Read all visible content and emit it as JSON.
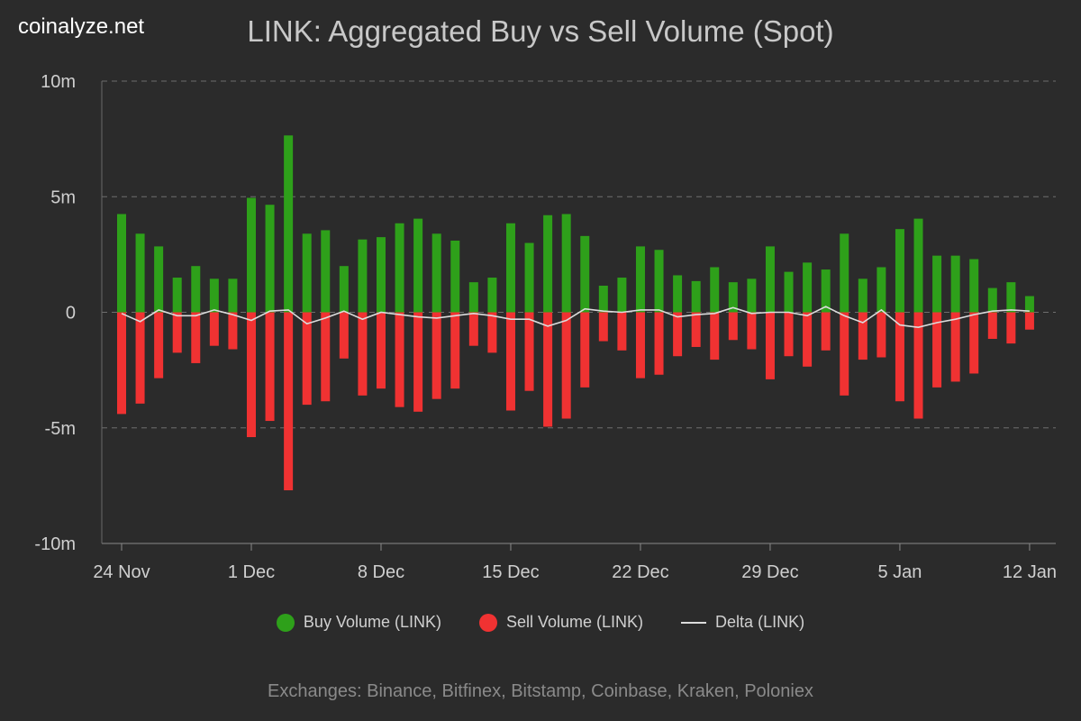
{
  "site": "coinalyze.net",
  "title": "LINK: Aggregated Buy vs Sell Volume (Spot)",
  "footer": "Exchanges: Binance, Bitfinex, Bitstamp, Coinbase, Kraken, Poloniex",
  "legend": {
    "buy": "Buy Volume (LINK)",
    "sell": "Sell Volume (LINK)",
    "delta": "Delta (LINK)"
  },
  "colors": {
    "buy": "#2ea01a",
    "sell": "#f03232",
    "delta": "#dcdcdc",
    "grid": "#6e6e6e"
  },
  "chart_data": {
    "type": "bar",
    "title": "LINK: Aggregated Buy vs Sell Volume (Spot)",
    "ylim": [
      -10,
      10
    ],
    "y_unit": "m",
    "y_ticks": [
      {
        "value": 10,
        "label": "10m"
      },
      {
        "value": 5,
        "label": "5m"
      },
      {
        "value": 0,
        "label": "0"
      },
      {
        "value": -5,
        "label": "-5m"
      },
      {
        "value": -10,
        "label": "-10m"
      }
    ],
    "x_ticks": [
      {
        "index": 0,
        "label": "24 Nov"
      },
      {
        "index": 7,
        "label": "1 Dec"
      },
      {
        "index": 14,
        "label": "8 Dec"
      },
      {
        "index": 21,
        "label": "15 Dec"
      },
      {
        "index": 28,
        "label": "22 Dec"
      },
      {
        "index": 35,
        "label": "29 Dec"
      },
      {
        "index": 42,
        "label": "5 Jan"
      },
      {
        "index": 49,
        "label": "12 Jan"
      }
    ],
    "dates": [
      "24 Nov",
      "25 Nov",
      "26 Nov",
      "27 Nov",
      "28 Nov",
      "29 Nov",
      "30 Nov",
      "1 Dec",
      "2 Dec",
      "3 Dec",
      "4 Dec",
      "5 Dec",
      "6 Dec",
      "7 Dec",
      "8 Dec",
      "9 Dec",
      "10 Dec",
      "11 Dec",
      "12 Dec",
      "13 Dec",
      "14 Dec",
      "15 Dec",
      "16 Dec",
      "17 Dec",
      "18 Dec",
      "19 Dec",
      "20 Dec",
      "21 Dec",
      "22 Dec",
      "23 Dec",
      "24 Dec",
      "25 Dec",
      "26 Dec",
      "27 Dec",
      "28 Dec",
      "29 Dec",
      "30 Dec",
      "31 Dec",
      "1 Jan",
      "2 Jan",
      "3 Jan",
      "4 Jan",
      "5 Jan",
      "6 Jan",
      "7 Jan",
      "8 Jan",
      "9 Jan",
      "10 Jan",
      "11 Jan",
      "12 Jan"
    ],
    "series": [
      {
        "name": "Buy Volume (LINK)",
        "type": "bar",
        "values": [
          4.25,
          3.4,
          2.85,
          1.5,
          2.0,
          1.45,
          1.45,
          4.95,
          4.65,
          7.65,
          3.4,
          3.55,
          2.0,
          3.15,
          3.25,
          3.85,
          4.05,
          3.4,
          3.1,
          1.3,
          1.5,
          3.85,
          3.0,
          4.2,
          4.25,
          3.3,
          1.15,
          1.5,
          2.85,
          2.7,
          1.6,
          1.35,
          1.95,
          1.3,
          1.45,
          2.85,
          1.75,
          2.15,
          1.85,
          3.4,
          1.45,
          1.95,
          3.6,
          4.05,
          2.45,
          2.45,
          2.3,
          1.05,
          1.3,
          0.7
        ]
      },
      {
        "name": "Sell Volume (LINK)",
        "type": "bar",
        "values": [
          -4.4,
          -3.95,
          -2.85,
          -1.75,
          -2.2,
          -1.45,
          -1.6,
          -5.4,
          -4.7,
          -7.7,
          -4.0,
          -3.85,
          -2.0,
          -3.6,
          -3.3,
          -4.1,
          -4.3,
          -3.75,
          -3.3,
          -1.45,
          -1.75,
          -4.25,
          -3.4,
          -4.95,
          -4.6,
          -3.25,
          -1.25,
          -1.65,
          -2.85,
          -2.7,
          -1.9,
          -1.5,
          -2.05,
          -1.2,
          -1.6,
          -2.9,
          -1.9,
          -2.35,
          -1.65,
          -3.6,
          -2.05,
          -1.95,
          -3.85,
          -4.6,
          -3.25,
          -3.0,
          -2.65,
          -1.15,
          -1.35,
          -0.75
        ]
      },
      {
        "name": "Delta (LINK)",
        "type": "line",
        "values": [
          -0.05,
          -0.4,
          0.1,
          -0.15,
          -0.15,
          0.1,
          -0.1,
          -0.35,
          0.05,
          0.1,
          -0.5,
          -0.25,
          0.05,
          -0.3,
          0.0,
          -0.1,
          -0.2,
          -0.25,
          -0.15,
          -0.05,
          -0.15,
          -0.3,
          -0.3,
          -0.6,
          -0.35,
          0.15,
          0.05,
          0.0,
          0.1,
          0.1,
          -0.2,
          -0.1,
          -0.05,
          0.2,
          -0.05,
          0.0,
          0.0,
          -0.15,
          0.25,
          -0.15,
          -0.45,
          0.1,
          -0.55,
          -0.65,
          -0.45,
          -0.3,
          -0.1,
          0.05,
          0.1,
          0.05
        ]
      }
    ]
  }
}
